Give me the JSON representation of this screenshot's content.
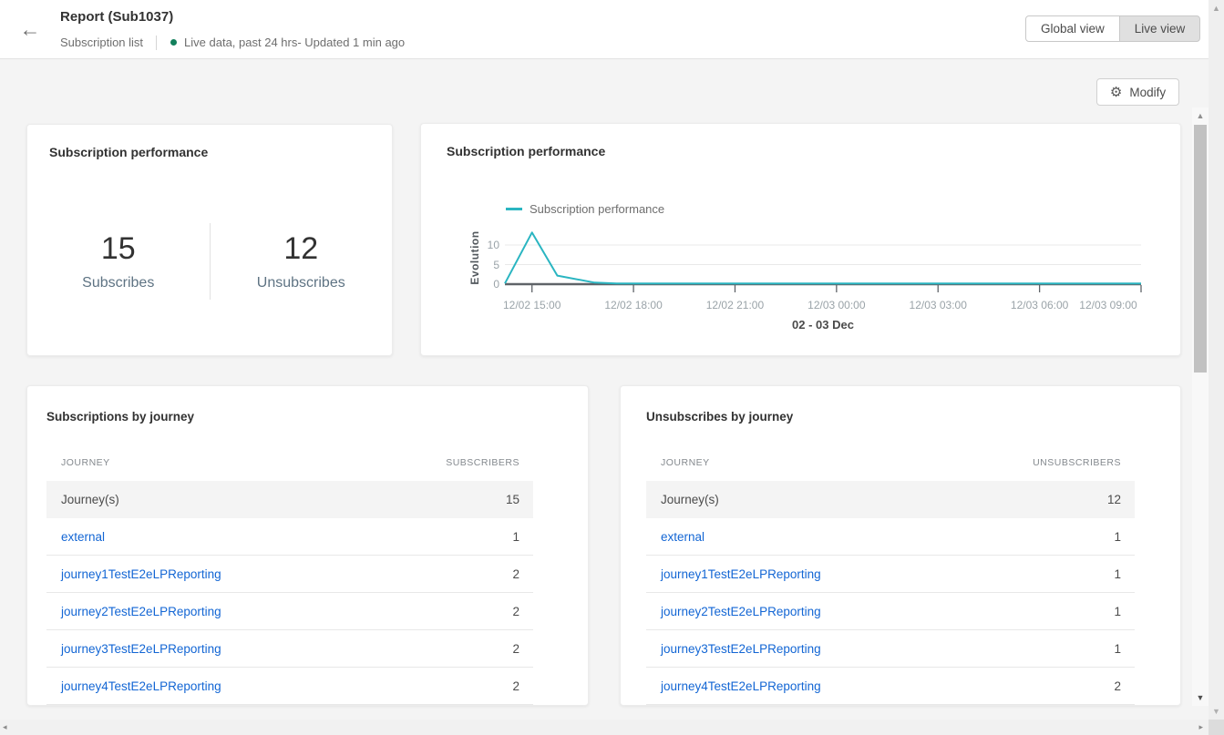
{
  "icons": {
    "back": "←",
    "gear": "⚙",
    "scroll_up": "▲",
    "scroll_down": "▼",
    "scroll_left": "◂",
    "scroll_right": "▸"
  },
  "header": {
    "title": "Report (Sub1037)",
    "breadcrumb": "Subscription list",
    "status_text": "Live data, past 24 hrs- Updated 1 min ago",
    "buttons": {
      "global": "Global view",
      "live": "Live view",
      "active": "live"
    }
  },
  "toolbar": {
    "modify": "Modify"
  },
  "summary_card": {
    "title": "Subscription performance",
    "metrics": [
      {
        "value": "15",
        "label": "Subscribes"
      },
      {
        "value": "12",
        "label": "Unsubscribes"
      }
    ]
  },
  "chart_card": {
    "title": "Subscription performance",
    "legend": "Subscription performance"
  },
  "chart_data": {
    "type": "line",
    "title": "Subscription performance",
    "legend_entries": [
      "Subscription performance"
    ],
    "ylabel": "Evolution",
    "xlabel": "02 - 03 Dec",
    "line_color": "#2ab5c1",
    "grid": "horizontal",
    "y_ticks": [
      0,
      5,
      10
    ],
    "ylim": [
      0,
      14
    ],
    "x_range_hours": [
      14.2,
      33
    ],
    "x_ticks": [
      {
        "hour": 15,
        "label": "12/02 15:00"
      },
      {
        "hour": 18,
        "label": "12/02 18:00"
      },
      {
        "hour": 21,
        "label": "12/02 21:00"
      },
      {
        "hour": 24,
        "label": "12/03 00:00"
      },
      {
        "hour": 27,
        "label": "12/03 03:00"
      },
      {
        "hour": 30,
        "label": "12/03 06:00"
      },
      {
        "hour": 33,
        "label": "12/03 09:00"
      }
    ],
    "series": [
      {
        "name": "Subscription performance",
        "points": [
          {
            "time": "12/02 14:10",
            "hour": 14.2,
            "value": 0
          },
          {
            "time": "12/02 15:00",
            "hour": 15.0,
            "value": 13
          },
          {
            "time": "12/02 15:45",
            "hour": 15.75,
            "value": 2
          },
          {
            "time": "12/02 16:50",
            "hour": 16.85,
            "value": 0.2
          },
          {
            "time": "12/02 17:30",
            "hour": 17.5,
            "value": 0
          },
          {
            "time": "12/03 09:00",
            "hour": 33,
            "value": 0
          }
        ]
      }
    ]
  },
  "tables": [
    {
      "title": "Subscriptions by journey",
      "columns": [
        "JOURNEY",
        "SUBSCRIBERS"
      ],
      "rows": [
        {
          "journey": "Journey(s)",
          "value": "15",
          "link": false,
          "striped": true
        },
        {
          "journey": "external",
          "value": "1",
          "link": true,
          "striped": false
        },
        {
          "journey": "journey1TestE2eLPReporting",
          "value": "2",
          "link": true,
          "striped": false
        },
        {
          "journey": "journey2TestE2eLPReporting",
          "value": "2",
          "link": true,
          "striped": false
        },
        {
          "journey": "journey3TestE2eLPReporting",
          "value": "2",
          "link": true,
          "striped": false
        },
        {
          "journey": "journey4TestE2eLPReporting",
          "value": "2",
          "link": true,
          "striped": false
        }
      ]
    },
    {
      "title": "Unsubscribes by journey",
      "columns": [
        "JOURNEY",
        "UNSUBSCRIBERS"
      ],
      "rows": [
        {
          "journey": "Journey(s)",
          "value": "12",
          "link": false,
          "striped": true
        },
        {
          "journey": "external",
          "value": "1",
          "link": true,
          "striped": false
        },
        {
          "journey": "journey1TestE2eLPReporting",
          "value": "1",
          "link": true,
          "striped": false
        },
        {
          "journey": "journey2TestE2eLPReporting",
          "value": "1",
          "link": true,
          "striped": false
        },
        {
          "journey": "journey3TestE2eLPReporting",
          "value": "1",
          "link": true,
          "striped": false
        },
        {
          "journey": "journey4TestE2eLPReporting",
          "value": "2",
          "link": true,
          "striped": false
        }
      ]
    }
  ],
  "colors": {
    "accent_teal": "#2ab5c1",
    "link_blue": "#1366d4",
    "status_green": "#12805c",
    "page_bg": "#f4f4f4",
    "stripe_bg": "#f4f4f4",
    "axis_dark": "#5f6368",
    "grid_light": "#e9e9e9"
  }
}
